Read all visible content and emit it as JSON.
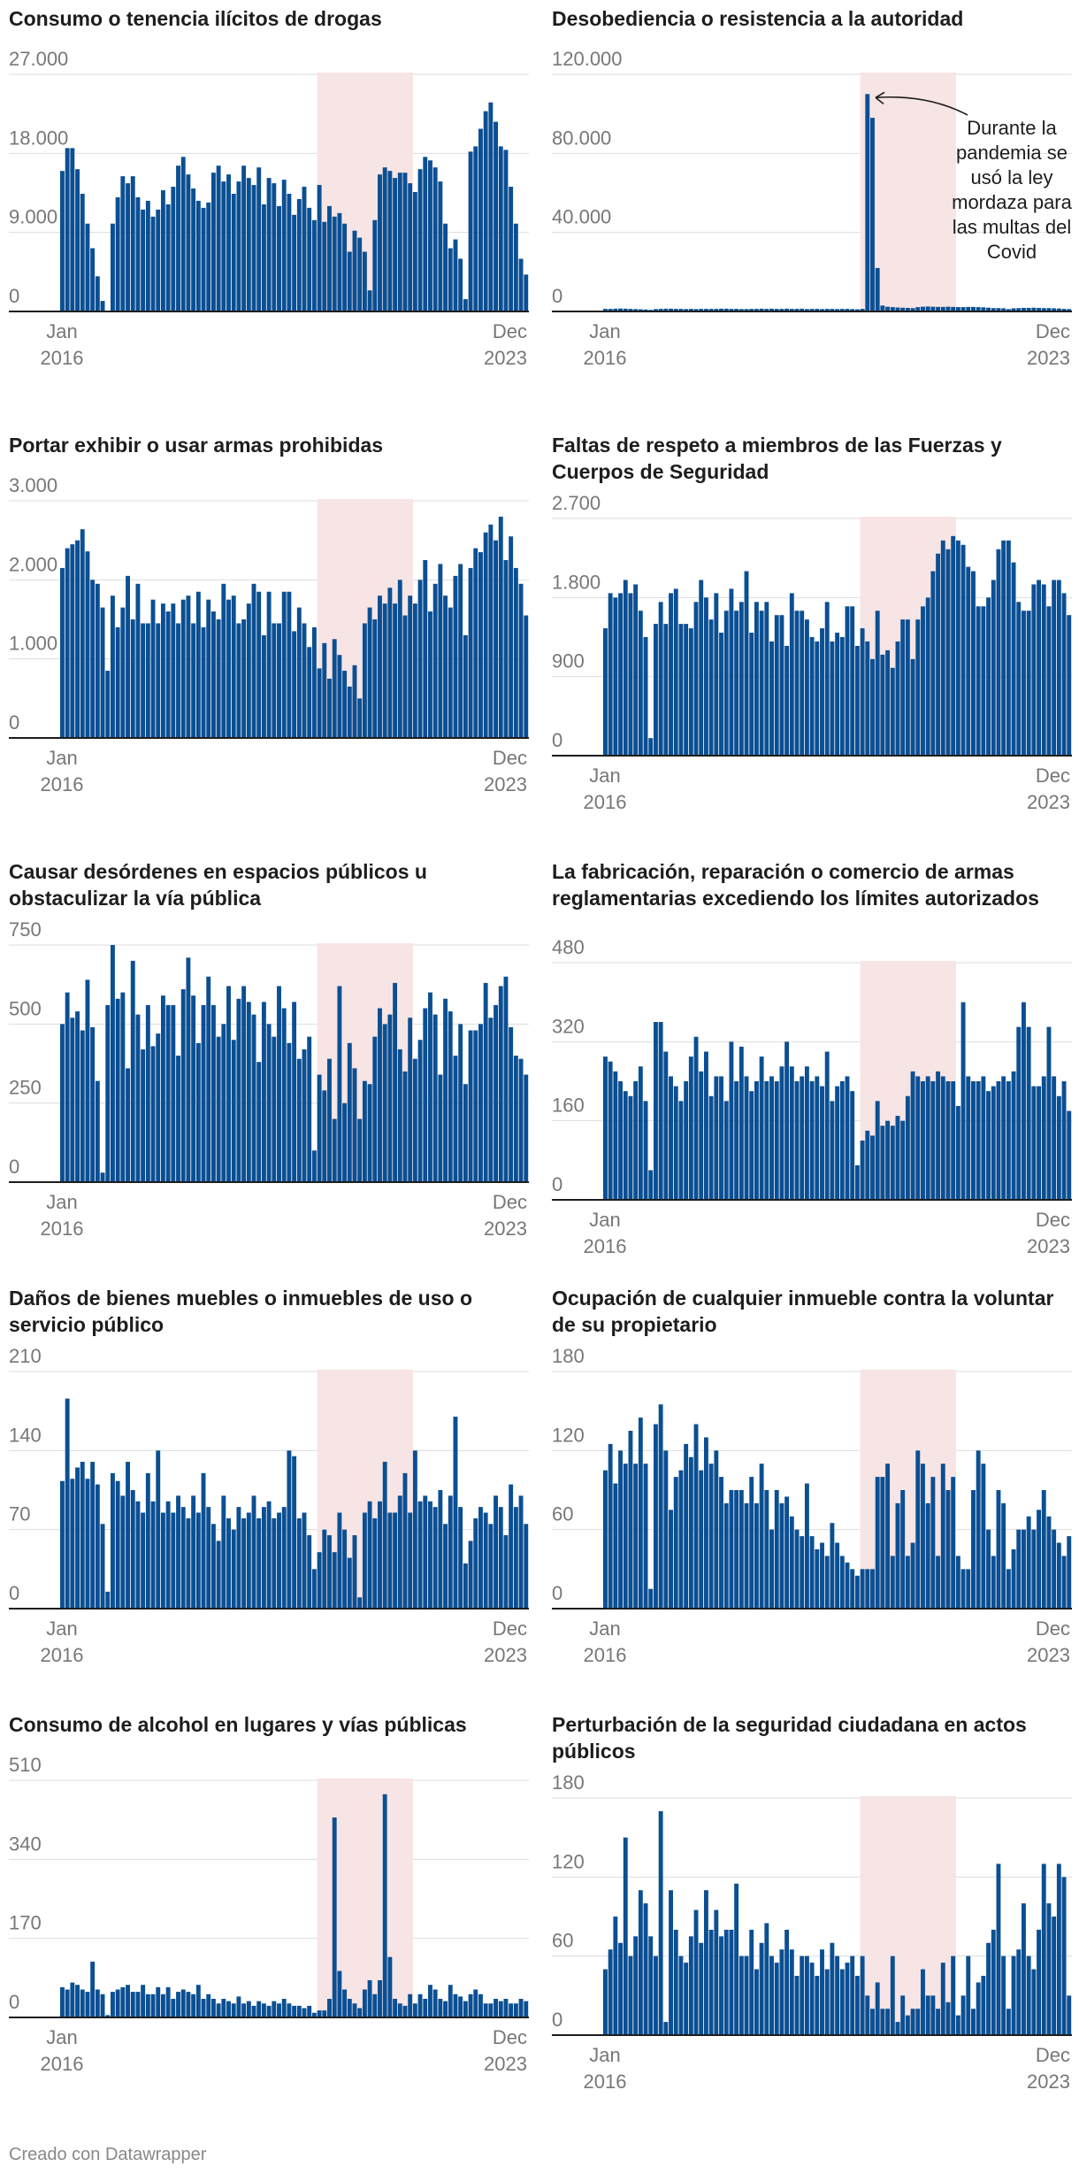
{
  "footer": "Creado con Datawrapper",
  "colors": {
    "bar": "#0b4f93",
    "shade": "#f7e4e4",
    "grid": "#dddddd",
    "axis": "#1d1d1d",
    "tick": "#777777"
  },
  "chart_data": [
    {
      "type": "bar",
      "title": "Consumo o tenencia ilícitos de drogas",
      "yticks": [
        0,
        9000,
        18000,
        27000
      ],
      "ytick_labels": [
        "0",
        "9.000",
        "18.000",
        "27.000"
      ],
      "ylim": [
        0,
        27000
      ],
      "x_start_labels": [
        "Jan",
        "2016"
      ],
      "x_end_labels": [
        "Dec",
        "2023"
      ],
      "shaded_period": [
        51,
        70
      ],
      "values": [
        16000,
        18600,
        18600,
        16200,
        13400,
        10000,
        7200,
        4000,
        1200,
        0,
        10000,
        13000,
        15400,
        14600,
        15400,
        13000,
        11600,
        12600,
        10800,
        11600,
        13800,
        12200,
        14200,
        16600,
        17600,
        15600,
        14000,
        12600,
        11800,
        12400,
        15800,
        16600,
        14800,
        15600,
        13400,
        14800,
        16600,
        15200,
        14400,
        16400,
        12200,
        15200,
        14600,
        12000,
        15000,
        13400,
        11000,
        12800,
        14200,
        11800,
        10400,
        14400,
        10200,
        12000,
        10800,
        11200,
        10000,
        6800,
        9200,
        8400,
        6800,
        2400,
        10400,
        15600,
        16400,
        16000,
        15200,
        15800,
        15800,
        14600,
        13600,
        16200,
        17600,
        17200,
        16400,
        14800,
        10000,
        7200,
        8200,
        6000,
        1400,
        18200,
        18800,
        20800,
        22800,
        23800,
        21600,
        18800,
        18400,
        14200,
        10000,
        6000,
        4200
      ]
    },
    {
      "type": "bar",
      "title": "Desobediencia o resistencia a la autoridad",
      "yticks": [
        0,
        40000,
        80000,
        120000
      ],
      "ytick_labels": [
        "0",
        "40.000",
        "80.000",
        "120.000"
      ],
      "ylim": [
        0,
        120000
      ],
      "x_start_labels": [
        "Jan",
        "2016"
      ],
      "x_end_labels": [
        "Dec",
        "2023"
      ],
      "shaded_period": [
        51,
        70
      ],
      "annotation": [
        "Durante la",
        "pandemia se",
        "usó la ley",
        "mordaza para",
        "las multas del",
        "Covid"
      ],
      "values": [
        1300,
        1300,
        1400,
        1500,
        1400,
        1300,
        1200,
        1100,
        1000,
        800,
        1200,
        1300,
        1400,
        1400,
        1300,
        1300,
        1200,
        1300,
        1200,
        1300,
        1300,
        1300,
        1300,
        1400,
        1400,
        1300,
        1300,
        1200,
        1200,
        1300,
        1300,
        1400,
        1300,
        1400,
        1300,
        1300,
        1400,
        1300,
        1300,
        1400,
        1200,
        1300,
        1300,
        1200,
        1300,
        1300,
        1200,
        1300,
        1300,
        1200,
        1100,
        1300,
        110000,
        98000,
        22000,
        3000,
        2400,
        2200,
        2000,
        1900,
        1800,
        1700,
        2200,
        2400,
        2500,
        2400,
        2300,
        2300,
        2400,
        2300,
        2200,
        2200,
        2300,
        2300,
        2200,
        2100,
        1900,
        1700,
        1700,
        1600,
        1200,
        1600,
        1700,
        1800,
        1800,
        1900,
        1800,
        1700,
        1700,
        1600,
        1500,
        1300,
        1200
      ]
    },
    {
      "type": "bar",
      "title": "Portar exhibir o usar armas prohibidas",
      "yticks": [
        0,
        1000,
        2000,
        3000
      ],
      "ytick_labels": [
        "0",
        "1.000",
        "2.000",
        "3.000"
      ],
      "ylim": [
        0,
        3000
      ],
      "x_start_labels": [
        "Jan",
        "2016"
      ],
      "x_end_labels": [
        "Dec",
        "2023"
      ],
      "shaded_period": [
        51,
        70
      ],
      "values": [
        2150,
        2400,
        2450,
        2500,
        2640,
        2360,
        2000,
        1950,
        1650,
        850,
        1800,
        1400,
        1650,
        2050,
        1500,
        1950,
        1450,
        1450,
        1750,
        1450,
        1700,
        1600,
        1700,
        1450,
        1750,
        1800,
        1450,
        1850,
        1400,
        1750,
        1600,
        1500,
        1950,
        1750,
        1800,
        1450,
        1500,
        1700,
        1950,
        1850,
        1300,
        1850,
        1450,
        1450,
        1850,
        1850,
        1350,
        1650,
        1450,
        1150,
        1400,
        880,
        1200,
        750,
        1250,
        1050,
        850,
        650,
        920,
        500,
        1450,
        1650,
        1500,
        1800,
        1700,
        1900,
        1700,
        2000,
        1550,
        1800,
        1700,
        2000,
        2250,
        1600,
        1950,
        2200,
        1800,
        1650,
        2050,
        2200,
        1300,
        2150,
        2400,
        2350,
        2600,
        2700,
        2500,
        2800,
        2250,
        2550,
        2150,
        1950,
        1550
      ]
    },
    {
      "type": "bar",
      "title": "Faltas de respeto a miembros de las Fuerzas y Cuerpos de Seguridad",
      "yticks": [
        0,
        900,
        1800,
        2700
      ],
      "ytick_labels": [
        "0",
        "900",
        "1.800",
        "2.700"
      ],
      "ylim": [
        0,
        2700
      ],
      "x_start_labels": [
        "Jan",
        "2016"
      ],
      "x_end_labels": [
        "Dec",
        "2023"
      ],
      "shaded_period": [
        51,
        70
      ],
      "values": [
        1450,
        1850,
        1800,
        1850,
        2000,
        1850,
        1950,
        1650,
        1350,
        200,
        1500,
        1750,
        1500,
        1850,
        1900,
        1500,
        1500,
        1450,
        1750,
        2000,
        1800,
        1550,
        1850,
        1400,
        1650,
        1900,
        1650,
        1750,
        2100,
        1400,
        1750,
        1650,
        1750,
        1300,
        1600,
        1600,
        1250,
        1850,
        1650,
        1650,
        1550,
        1350,
        1300,
        1450,
        1750,
        1300,
        1400,
        1350,
        1700,
        1700,
        1250,
        1450,
        1300,
        1100,
        1650,
        1150,
        1200,
        1000,
        1300,
        1550,
        1550,
        1100,
        1550,
        1700,
        1800,
        2100,
        2300,
        2450,
        2350,
        2500,
        2450,
        2400,
        2150,
        2100,
        1700,
        1700,
        1800,
        2000,
        2350,
        2450,
        2450,
        2200,
        1750,
        1650,
        1650,
        1950,
        2000,
        1950,
        1700,
        2000,
        2000,
        1850,
        1600
      ]
    },
    {
      "type": "bar",
      "title": "Causar desórdenes en espacios públicos u obstaculizar la vía pública",
      "yticks": [
        0,
        250,
        500,
        750
      ],
      "ytick_labels": [
        "0",
        "250",
        "500",
        "750"
      ],
      "ylim": [
        0,
        750
      ],
      "x_start_labels": [
        "Jan",
        "2016"
      ],
      "x_end_labels": [
        "Dec",
        "2023"
      ],
      "shaded_period": [
        51,
        70
      ],
      "values": [
        500,
        600,
        520,
        540,
        480,
        640,
        490,
        320,
        30,
        560,
        750,
        580,
        600,
        360,
        700,
        530,
        420,
        560,
        430,
        470,
        590,
        560,
        560,
        400,
        610,
        710,
        590,
        440,
        560,
        650,
        560,
        460,
        500,
        620,
        450,
        580,
        620,
        570,
        530,
        380,
        570,
        500,
        460,
        620,
        550,
        440,
        570,
        390,
        420,
        460,
        100,
        340,
        290,
        390,
        200,
        620,
        250,
        440,
        360,
        200,
        320,
        310,
        460,
        550,
        500,
        530,
        630,
        420,
        350,
        520,
        390,
        450,
        550,
        600,
        530,
        340,
        580,
        540,
        400,
        500,
        310,
        480,
        480,
        500,
        630,
        520,
        560,
        620,
        650,
        490,
        400,
        390,
        340
      ]
    },
    {
      "type": "bar",
      "title": "La fabricación, reparación o comercio de armas reglamentarias excediendo los límites autorizados",
      "yticks": [
        0,
        160,
        320,
        480
      ],
      "ytick_labels": [
        "0",
        "160",
        "320",
        "480"
      ],
      "ylim": [
        0,
        480
      ],
      "x_start_labels": [
        "Jan",
        "2016"
      ],
      "x_end_labels": [
        "Dec",
        "2023"
      ],
      "shaded_period": [
        51,
        70
      ],
      "values": [
        290,
        280,
        260,
        240,
        220,
        210,
        240,
        270,
        200,
        60,
        360,
        360,
        300,
        250,
        230,
        200,
        240,
        290,
        330,
        260,
        300,
        210,
        250,
        250,
        200,
        320,
        240,
        310,
        250,
        220,
        240,
        290,
        240,
        250,
        240,
        270,
        320,
        270,
        240,
        250,
        270,
        240,
        250,
        230,
        300,
        200,
        230,
        240,
        250,
        220,
        70,
        120,
        140,
        130,
        200,
        150,
        160,
        150,
        170,
        160,
        210,
        260,
        250,
        240,
        250,
        240,
        260,
        250,
        240,
        240,
        190,
        400,
        250,
        240,
        240,
        250,
        220,
        230,
        240,
        250,
        240,
        260,
        350,
        400,
        350,
        230,
        230,
        250,
        350,
        250,
        210,
        240,
        180
      ]
    },
    {
      "type": "bar",
      "title": "Daños de bienes muebles o inmuebles de uso o servicio público",
      "yticks": [
        0,
        70,
        140,
        210
      ],
      "ytick_labels": [
        "0",
        "70",
        "140",
        "210"
      ],
      "ylim": [
        0,
        210
      ],
      "x_start_labels": [
        "Jan",
        "2016"
      ],
      "x_end_labels": [
        "Dec",
        "2023"
      ],
      "shaded_period": [
        51,
        70
      ],
      "values": [
        113,
        186,
        115,
        125,
        130,
        115,
        130,
        110,
        75,
        15,
        120,
        113,
        100,
        130,
        105,
        95,
        85,
        120,
        95,
        140,
        85,
        95,
        85,
        100,
        90,
        80,
        100,
        85,
        120,
        90,
        75,
        60,
        100,
        80,
        70,
        90,
        80,
        85,
        100,
        80,
        90,
        95,
        80,
        85,
        90,
        140,
        135,
        80,
        85,
        65,
        35,
        50,
        70,
        65,
        50,
        85,
        70,
        45,
        65,
        10,
        85,
        95,
        80,
        95,
        130,
        85,
        85,
        100,
        120,
        85,
        140,
        95,
        100,
        95,
        90,
        105,
        75,
        100,
        170,
        90,
        40,
        60,
        80,
        90,
        85,
        75,
        100,
        90,
        65,
        110,
        90,
        100,
        75
      ]
    },
    {
      "type": "bar",
      "title": "Ocupación de cualquier inmueble contra la voluntar de su propietario",
      "yticks": [
        0,
        60,
        120,
        180
      ],
      "ytick_labels": [
        "0",
        "60",
        "120",
        "180"
      ],
      "ylim": [
        0,
        180
      ],
      "x_start_labels": [
        "Jan",
        "2016"
      ],
      "x_end_labels": [
        "Dec",
        "2023"
      ],
      "shaded_period": [
        51,
        70
      ],
      "values": [
        105,
        125,
        95,
        120,
        110,
        135,
        110,
        145,
        110,
        15,
        140,
        155,
        120,
        75,
        100,
        105,
        125,
        115,
        140,
        105,
        130,
        110,
        120,
        100,
        80,
        90,
        90,
        90,
        80,
        100,
        80,
        110,
        90,
        60,
        90,
        80,
        85,
        70,
        60,
        55,
        95,
        55,
        45,
        50,
        40,
        65,
        50,
        40,
        35,
        30,
        25,
        30,
        30,
        30,
        100,
        100,
        110,
        40,
        80,
        90,
        40,
        50,
        120,
        110,
        80,
        100,
        40,
        110,
        90,
        100,
        40,
        30,
        30,
        90,
        120,
        110,
        60,
        40,
        90,
        80,
        30,
        45,
        60,
        60,
        70,
        60,
        75,
        90,
        70,
        60,
        50,
        40,
        55
      ]
    },
    {
      "type": "bar",
      "title": "Consumo de alcohol en lugares y vías públicas",
      "yticks": [
        0,
        170,
        340,
        510
      ],
      "ytick_labels": [
        "0",
        "170",
        "340",
        "510"
      ],
      "ylim": [
        0,
        510
      ],
      "x_start_labels": [
        "Jan",
        "2016"
      ],
      "x_end_labels": [
        "Dec",
        "2023"
      ],
      "shaded_period": [
        51,
        70
      ],
      "values": [
        65,
        60,
        75,
        70,
        60,
        55,
        120,
        60,
        50,
        5,
        55,
        60,
        65,
        70,
        55,
        55,
        70,
        50,
        50,
        65,
        50,
        65,
        40,
        55,
        60,
        55,
        50,
        70,
        40,
        50,
        40,
        30,
        40,
        35,
        30,
        45,
        30,
        35,
        25,
        35,
        30,
        25,
        35,
        30,
        40,
        30,
        25,
        25,
        20,
        25,
        10,
        15,
        15,
        40,
        430,
        100,
        60,
        40,
        30,
        20,
        60,
        80,
        50,
        80,
        480,
        130,
        40,
        30,
        25,
        50,
        30,
        50,
        40,
        70,
        60,
        40,
        35,
        70,
        50,
        45,
        35,
        50,
        60,
        50,
        30,
        30,
        40,
        35,
        40,
        30,
        30,
        40,
        35
      ]
    },
    {
      "type": "bar",
      "title": "Perturbación de la seguridad ciudadana en actos públicos",
      "yticks": [
        0,
        60,
        120,
        180
      ],
      "ytick_labels": [
        "0",
        "60",
        "120",
        "180"
      ],
      "ylim": [
        0,
        180
      ],
      "x_start_labels": [
        "Jan",
        "2016"
      ],
      "x_end_labels": [
        "Dec",
        "2023"
      ],
      "shaded_period": [
        51,
        70
      ],
      "values": [
        50,
        65,
        90,
        70,
        150,
        60,
        75,
        110,
        100,
        75,
        60,
        170,
        10,
        110,
        80,
        60,
        55,
        75,
        95,
        70,
        110,
        80,
        95,
        75,
        80,
        80,
        115,
        60,
        60,
        80,
        50,
        70,
        85,
        60,
        55,
        65,
        80,
        65,
        45,
        60,
        60,
        55,
        45,
        65,
        50,
        70,
        60,
        50,
        55,
        60,
        45,
        60,
        30,
        20,
        40,
        20,
        20,
        60,
        10,
        30,
        15,
        20,
        20,
        50,
        30,
        30,
        20,
        55,
        25,
        60,
        15,
        30,
        60,
        20,
        40,
        45,
        70,
        80,
        130,
        60,
        20,
        60,
        65,
        100,
        60,
        50,
        80,
        130,
        100,
        90,
        130,
        120,
        30
      ]
    }
  ]
}
